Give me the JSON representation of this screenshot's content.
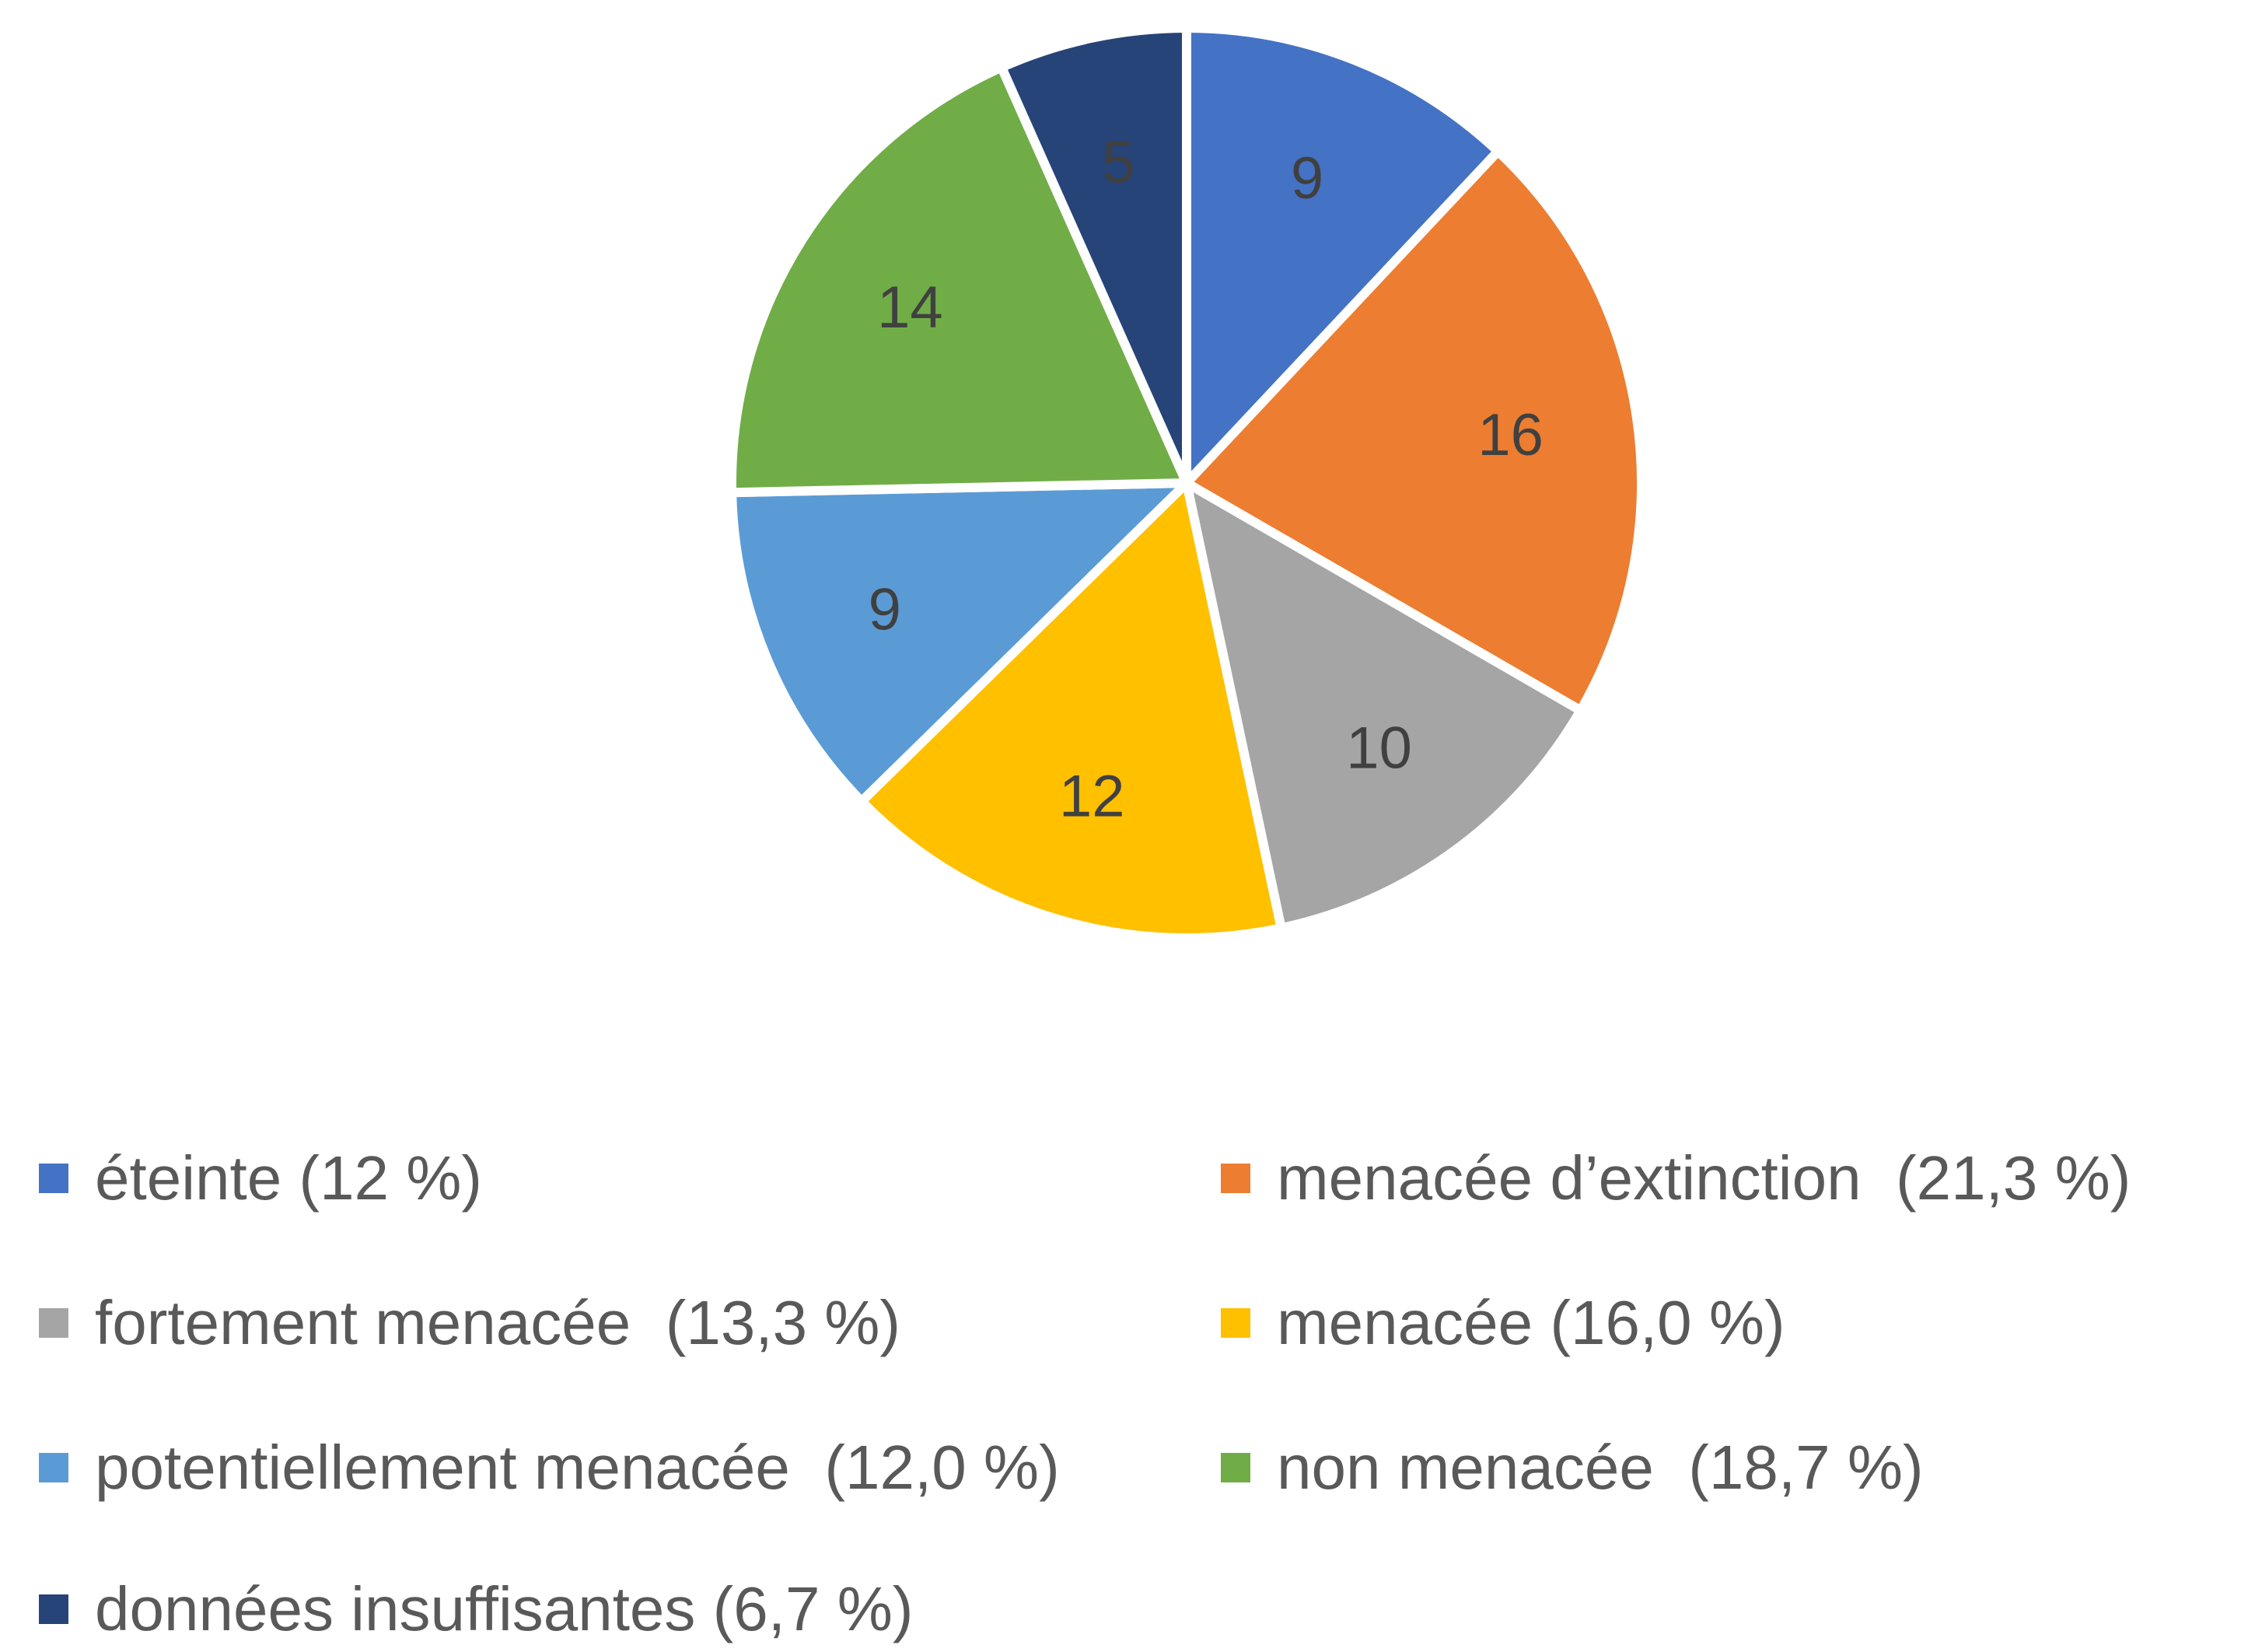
{
  "chart_data": {
    "type": "pie",
    "categories": [
      "éteinte",
      "menacée d’extinction",
      "fortement menacée",
      "menacée",
      "potentiellement menacée",
      "non menacée",
      "données insuffisantes"
    ],
    "values": [
      9,
      16,
      10,
      12,
      9,
      14,
      5
    ],
    "colors": [
      "#4472C4",
      "#ED7D31",
      "#A5A5A5",
      "#FFC000",
      "#5B9BD5",
      "#70AD47",
      "#264478"
    ],
    "data_labels": [
      "9",
      "16",
      "10",
      "12",
      "9",
      "14",
      "5"
    ],
    "legend_placement": "bottom",
    "legend": [
      {
        "label": "éteinte (12 %)",
        "color": "#4472C4"
      },
      {
        "label": "menacée d’extinction  (21,3 %)",
        "color": "#ED7D31"
      },
      {
        "label": "fortement menacée  (13,3 %)",
        "color": "#A5A5A5"
      },
      {
        "label": "menacée (16,0 %)",
        "color": "#FFC000"
      },
      {
        "label": "potentiellement menacée  (12,0 %)",
        "color": "#5B9BD5"
      },
      {
        "label": "non menacée  (18,7 %)",
        "color": "#70AD47"
      },
      {
        "label": "données insuffisantes (6,7 %)",
        "color": "#264478"
      }
    ]
  }
}
